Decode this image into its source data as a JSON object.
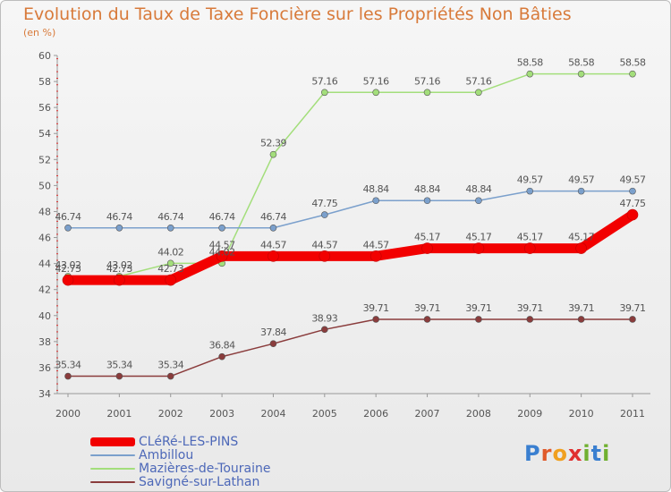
{
  "chart_data": {
    "type": "line",
    "title": "Evolution du Taux de Taxe Foncière sur les Propriétés Non Bâties",
    "ylabel": "(en %)",
    "categories": [
      "2000",
      "2001",
      "2002",
      "2003",
      "2004",
      "2005",
      "2006",
      "2007",
      "2008",
      "2009",
      "2010",
      "2011"
    ],
    "ylim": [
      34,
      60
    ],
    "yticks": [
      34,
      36,
      38,
      40,
      42,
      44,
      46,
      48,
      50,
      52,
      54,
      56,
      58,
      60
    ],
    "series": [
      {
        "name": "CLéRé-LES-PINS",
        "color": "#f20000",
        "values": [
          42.73,
          42.73,
          42.73,
          44.57,
          44.57,
          44.57,
          44.57,
          45.17,
          45.17,
          45.17,
          45.17,
          47.75
        ],
        "labels": [
          "42.73",
          "42.73",
          "42.73",
          "44.57",
          "44.57",
          "44.57",
          "44.57",
          "45.17",
          "45.17",
          "45.17",
          "45.17",
          "47.75"
        ]
      },
      {
        "name": "Ambillou",
        "color": "#7ba0cc",
        "values": [
          46.74,
          46.74,
          46.74,
          46.74,
          46.74,
          47.75,
          48.84,
          48.84,
          48.84,
          49.57,
          49.57,
          49.57
        ],
        "labels": [
          "46.74",
          "46.74",
          "46.74",
          "46.74",
          "46.74",
          "47.75",
          "48.84",
          "48.84",
          "48.84",
          "49.57",
          "49.57",
          "49.57"
        ]
      },
      {
        "name": "Mazières-de-Touraine",
        "color": "#a3de7b",
        "values": [
          43.02,
          43.02,
          44.02,
          44.02,
          52.39,
          57.16,
          57.16,
          57.16,
          57.16,
          58.58,
          58.58,
          58.58
        ],
        "labels": [
          "43.02",
          "43.02",
          "44.02",
          "44.02",
          "52.39",
          "57.16",
          "57.16",
          "57.16",
          "57.16",
          "58.58",
          "58.58",
          "58.58"
        ]
      },
      {
        "name": "Savigné-sur-Lathan",
        "color": "#8a3c3c",
        "values": [
          35.34,
          35.34,
          35.34,
          36.84,
          37.84,
          38.93,
          39.71,
          39.71,
          39.71,
          39.71,
          39.71,
          39.71
        ],
        "labels": [
          "35.34",
          "35.34",
          "35.34",
          "36.84",
          "37.84",
          "38.93",
          "39.71",
          "39.71",
          "39.71",
          "39.71",
          "39.71",
          "39.71"
        ]
      }
    ],
    "grid": false,
    "legend": "bottom-left"
  },
  "logo_text": "Proxiti",
  "colors": {
    "title": "#d87a3a",
    "axis": "#999999",
    "tick_marks": "#e03030",
    "legend_text": "#4d68b8"
  }
}
